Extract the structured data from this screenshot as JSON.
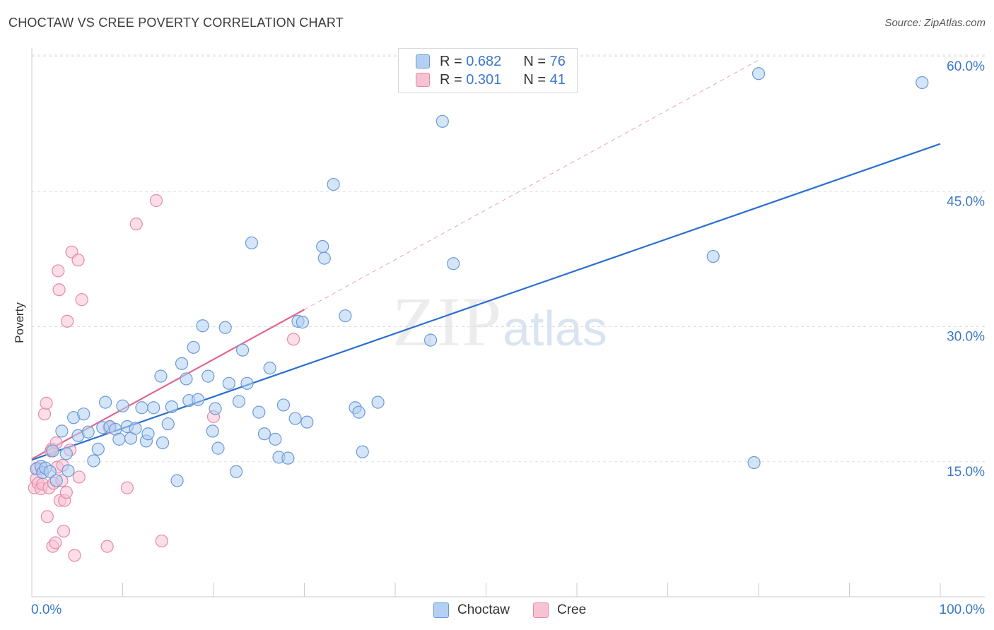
{
  "title": "CHOCTAW VS CREE POVERTY CORRELATION CHART",
  "source": "Source: ZipAtlas.com",
  "watermark": {
    "zip": "ZIP",
    "atlas": "atlas"
  },
  "legend": {
    "r_label": "R =",
    "n_label": "N =",
    "rows": [
      {
        "name": "Choctaw",
        "r": "0.682",
        "n": "76"
      },
      {
        "name": "Cree",
        "r": "0.301",
        "n": "41"
      }
    ]
  },
  "colors": {
    "choctaw_fill": "#b3d0f3",
    "choctaw_stroke": "#6a9ad8",
    "choctaw_line": "#2a6fcf",
    "cree_fill": "#f7c3d3",
    "cree_stroke": "#e68aa9",
    "cree_line": "#e06690",
    "axis_text": "#3b78c8"
  },
  "chart_data": {
    "type": "scatter",
    "title": "CHOCTAW VS CREE POVERTY CORRELATION CHART",
    "xlabel": "",
    "ylabel": "Poverty",
    "xlim": [
      0,
      100
    ],
    "ylim": [
      0,
      60
    ],
    "x_tick_labels": [
      "0.0%",
      "100.0%"
    ],
    "y_ticks": [
      15,
      30,
      45,
      60
    ],
    "y_tick_labels": [
      "15.0%",
      "30.0%",
      "45.0%",
      "60.0%"
    ],
    "grid": true,
    "series": [
      {
        "name": "Choctaw",
        "r": 0.682,
        "n": 76,
        "trend": {
          "x0": 0,
          "y0": 15.2,
          "x1": 100,
          "y1": 50.3
        },
        "points": [
          [
            0.5,
            14.2
          ],
          [
            1.0,
            14.5
          ],
          [
            1.2,
            13.8
          ],
          [
            1.5,
            14.3
          ],
          [
            2.0,
            13.9
          ],
          [
            2.3,
            16.2
          ],
          [
            2.7,
            12.9
          ],
          [
            3.3,
            18.4
          ],
          [
            3.8,
            15.9
          ],
          [
            4.0,
            14.0
          ],
          [
            4.6,
            19.9
          ],
          [
            5.1,
            17.9
          ],
          [
            5.7,
            20.3
          ],
          [
            6.2,
            18.3
          ],
          [
            6.8,
            15.1
          ],
          [
            7.3,
            16.4
          ],
          [
            7.8,
            18.8
          ],
          [
            8.1,
            21.6
          ],
          [
            8.6,
            18.9
          ],
          [
            9.2,
            18.6
          ],
          [
            9.6,
            17.5
          ],
          [
            10.0,
            21.2
          ],
          [
            10.5,
            18.9
          ],
          [
            10.9,
            17.6
          ],
          [
            11.4,
            18.7
          ],
          [
            12.1,
            21.0
          ],
          [
            12.6,
            17.3
          ],
          [
            12.8,
            18.1
          ],
          [
            13.4,
            21.0
          ],
          [
            14.2,
            24.5
          ],
          [
            14.4,
            17.1
          ],
          [
            15.0,
            19.2
          ],
          [
            15.4,
            21.1
          ],
          [
            16.0,
            12.9
          ],
          [
            16.5,
            25.9
          ],
          [
            17.0,
            24.2
          ],
          [
            17.3,
            21.8
          ],
          [
            17.8,
            27.7
          ],
          [
            18.3,
            21.9
          ],
          [
            18.8,
            30.1
          ],
          [
            19.4,
            24.5
          ],
          [
            19.9,
            18.4
          ],
          [
            20.2,
            20.9
          ],
          [
            20.5,
            16.5
          ],
          [
            21.3,
            29.9
          ],
          [
            21.7,
            23.7
          ],
          [
            22.5,
            13.9
          ],
          [
            22.8,
            21.7
          ],
          [
            23.2,
            27.4
          ],
          [
            23.7,
            23.7
          ],
          [
            24.2,
            39.3
          ],
          [
            25.0,
            20.5
          ],
          [
            25.6,
            18.1
          ],
          [
            26.2,
            25.4
          ],
          [
            26.8,
            17.5
          ],
          [
            27.2,
            15.5
          ],
          [
            27.7,
            21.3
          ],
          [
            28.2,
            15.4
          ],
          [
            29.0,
            19.8
          ],
          [
            29.3,
            30.6
          ],
          [
            29.8,
            30.5
          ],
          [
            30.3,
            19.4
          ],
          [
            32.0,
            38.9
          ],
          [
            32.2,
            37.6
          ],
          [
            33.2,
            45.8
          ],
          [
            34.5,
            31.2
          ],
          [
            35.6,
            21.0
          ],
          [
            36.0,
            20.5
          ],
          [
            36.4,
            16.1
          ],
          [
            38.1,
            21.6
          ],
          [
            43.9,
            28.5
          ],
          [
            45.2,
            52.8
          ],
          [
            46.4,
            37.0
          ],
          [
            75.0,
            37.8
          ],
          [
            80.0,
            58.1
          ],
          [
            98.0,
            57.1
          ],
          [
            79.5,
            14.9
          ]
        ]
      },
      {
        "name": "Cree",
        "r": 0.301,
        "n": 41,
        "trend": {
          "x0": 0,
          "y0": 15.3,
          "x1": 30,
          "y1": 31.9
        },
        "trend_extended": {
          "x0": 30,
          "y0": 31.9,
          "x1": 80,
          "y1": 59.6
        },
        "points": [
          [
            0.3,
            12.1
          ],
          [
            0.5,
            13.1
          ],
          [
            0.6,
            14.3
          ],
          [
            0.7,
            12.6
          ],
          [
            1.0,
            12.0
          ],
          [
            1.1,
            14.2
          ],
          [
            1.2,
            12.5
          ],
          [
            1.4,
            20.3
          ],
          [
            1.6,
            21.5
          ],
          [
            1.7,
            8.9
          ],
          [
            1.9,
            12.1
          ],
          [
            2.1,
            16.2
          ],
          [
            2.2,
            16.4
          ],
          [
            2.3,
            5.6
          ],
          [
            2.4,
            12.6
          ],
          [
            2.6,
            6.0
          ],
          [
            2.7,
            17.1
          ],
          [
            2.8,
            14.4
          ],
          [
            2.9,
            36.2
          ],
          [
            3.0,
            34.1
          ],
          [
            3.1,
            10.7
          ],
          [
            3.3,
            12.9
          ],
          [
            3.4,
            14.6
          ],
          [
            3.5,
            7.3
          ],
          [
            3.6,
            10.7
          ],
          [
            3.8,
            11.6
          ],
          [
            3.9,
            30.6
          ],
          [
            4.2,
            16.3
          ],
          [
            4.4,
            38.3
          ],
          [
            4.7,
            4.6
          ],
          [
            5.1,
            37.4
          ],
          [
            5.2,
            13.3
          ],
          [
            5.5,
            33.0
          ],
          [
            8.3,
            5.6
          ],
          [
            8.5,
            18.8
          ],
          [
            10.5,
            12.1
          ],
          [
            11.5,
            41.4
          ],
          [
            13.7,
            44.0
          ],
          [
            14.3,
            6.2
          ],
          [
            20.0,
            20.0
          ],
          [
            28.8,
            28.6
          ]
        ]
      }
    ]
  }
}
